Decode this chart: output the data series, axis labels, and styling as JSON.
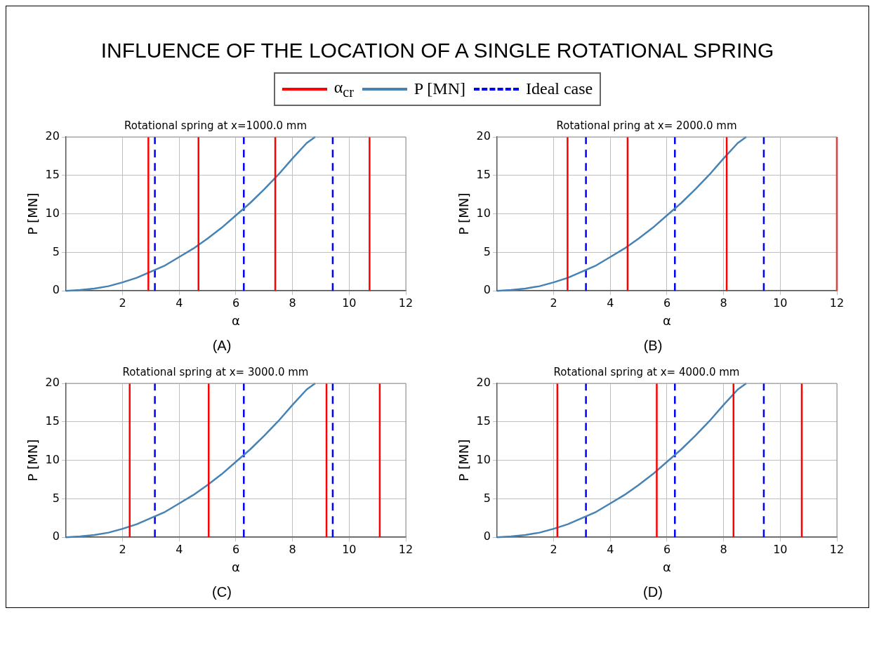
{
  "chart_data": [
    {
      "type": "other",
      "title": "INFLUENCE OF THE LOCATION OF A SINGLE ROTATIONAL SPRING"
    },
    {
      "type": "line",
      "title": "Rotational spring at x=1000.0 mm",
      "xlabel": "α",
      "ylabel": "P [MN]",
      "annotations": [
        "(A)"
      ],
      "xlim": [
        0,
        12
      ],
      "ylim": [
        0,
        20
      ],
      "xticks": [
        2,
        4,
        6,
        8,
        10,
        12
      ],
      "yticks": [
        0,
        5,
        10,
        15,
        20
      ],
      "grid": true,
      "legend": "top",
      "marker": "none",
      "series": [
        {
          "name": "α$_{cr}$",
          "color": "#ff0000",
          "x": [
            2.91,
            2.91,
            null,
            4.68,
            4.68,
            null,
            7.39,
            7.39,
            null,
            10.72,
            10.72
          ],
          "values": [
            0,
            20,
            null,
            0,
            20,
            null,
            0,
            20,
            null,
            0,
            20
          ]
        },
        {
          "name": "P [MN]",
          "color": "#4682b4",
          "x": [
            0,
            0.5,
            1,
            1.5,
            2,
            2.5,
            3,
            3.5,
            4,
            4.5,
            5,
            5.5,
            6,
            6.5,
            7,
            7.5,
            8,
            8.5,
            8.8
          ],
          "values": [
            0,
            0.1,
            0.3,
            0.6,
            1.1,
            1.7,
            2.5,
            3.3,
            4.4,
            5.5,
            6.8,
            8.2,
            9.8,
            11.4,
            13.2,
            15.1,
            17.2,
            19.2,
            20
          ]
        },
        {
          "name": "Ideal case",
          "color": "#0000ff",
          "line_style": "dashed",
          "x": [
            3.14,
            3.14,
            null,
            6.28,
            6.28,
            null,
            9.42,
            9.42
          ],
          "values": [
            0,
            20,
            null,
            0,
            20,
            null,
            0,
            20
          ]
        }
      ]
    },
    {
      "type": "line",
      "title": "Rotational pring at x= 2000.0 mm",
      "xlabel": "α",
      "ylabel": "P [MN]",
      "annotations": [
        "(B)"
      ],
      "xlim": [
        0,
        12
      ],
      "ylim": [
        0,
        20
      ],
      "xticks": [
        2,
        4,
        6,
        8,
        10,
        12
      ],
      "yticks": [
        0,
        5,
        10,
        15,
        20
      ],
      "grid": true,
      "marker": "none",
      "series": [
        {
          "color": "#ff0000",
          "x": [
            2.49,
            2.49,
            null,
            4.61,
            4.61,
            null,
            8.11,
            8.11,
            null,
            12,
            12
          ],
          "values": [
            0,
            20,
            null,
            0,
            20,
            null,
            0,
            20,
            null,
            0,
            20
          ]
        },
        {
          "color": "#4682b4",
          "x": [
            0,
            0.5,
            1,
            1.5,
            2,
            2.5,
            3,
            3.5,
            4,
            4.5,
            5,
            5.5,
            6,
            6.5,
            7,
            7.5,
            8,
            8.5,
            8.8
          ],
          "values": [
            0,
            0.1,
            0.3,
            0.6,
            1.1,
            1.7,
            2.5,
            3.3,
            4.4,
            5.5,
            6.8,
            8.2,
            9.8,
            11.4,
            13.2,
            15.1,
            17.2,
            19.2,
            20
          ]
        },
        {
          "color": "#0000ff",
          "line_style": "dashed",
          "x": [
            3.14,
            3.14,
            null,
            6.28,
            6.28,
            null,
            9.42,
            9.42
          ],
          "values": [
            0,
            20,
            null,
            0,
            20,
            null,
            0,
            20
          ]
        }
      ]
    },
    {
      "type": "line",
      "title": "Rotational spring at x= 3000.0 mm",
      "xlabel": "α",
      "ylabel": "P [MN]",
      "annotations": [
        "(C)"
      ],
      "xlim": [
        0,
        12
      ],
      "ylim": [
        0,
        20
      ],
      "xticks": [
        2,
        4,
        6,
        8,
        10,
        12
      ],
      "yticks": [
        0,
        5,
        10,
        15,
        20
      ],
      "grid": true,
      "marker": "none",
      "series": [
        {
          "color": "#ff0000",
          "x": [
            2.25,
            2.25,
            null,
            5.04,
            5.04,
            null,
            9.2,
            9.2,
            null,
            11.08,
            11.08
          ],
          "values": [
            0,
            20,
            null,
            0,
            20,
            null,
            0,
            20,
            null,
            0,
            20
          ]
        },
        {
          "color": "#4682b4",
          "x": [
            0,
            0.5,
            1,
            1.5,
            2,
            2.5,
            3,
            3.5,
            4,
            4.5,
            5,
            5.5,
            6,
            6.5,
            7,
            7.5,
            8,
            8.5,
            8.8
          ],
          "values": [
            0,
            0.1,
            0.3,
            0.6,
            1.1,
            1.7,
            2.5,
            3.3,
            4.4,
            5.5,
            6.8,
            8.2,
            9.8,
            11.4,
            13.2,
            15.1,
            17.2,
            19.2,
            20
          ]
        },
        {
          "color": "#0000ff",
          "line_style": "dashed",
          "x": [
            3.14,
            3.14,
            null,
            6.28,
            6.28,
            null,
            9.42,
            9.42
          ],
          "values": [
            0,
            20,
            null,
            0,
            20,
            null,
            0,
            20
          ]
        }
      ]
    },
    {
      "type": "line",
      "title": "Rotational spring at x= 4000.0 mm",
      "xlabel": "α",
      "ylabel": "P [MN]",
      "annotations": [
        "(D)"
      ],
      "xlim": [
        0,
        12
      ],
      "ylim": [
        0,
        20
      ],
      "xticks": [
        2,
        4,
        6,
        8,
        10,
        12
      ],
      "yticks": [
        0,
        5,
        10,
        15,
        20
      ],
      "grid": true,
      "marker": "none",
      "series": [
        {
          "color": "#ff0000",
          "x": [
            2.13,
            2.13,
            null,
            5.64,
            5.64,
            null,
            8.35,
            8.35,
            null,
            10.76,
            10.76
          ],
          "values": [
            0,
            20,
            null,
            0,
            20,
            null,
            0,
            20,
            null,
            0,
            20
          ]
        },
        {
          "color": "#4682b4",
          "x": [
            0,
            0.5,
            1,
            1.5,
            2,
            2.5,
            3,
            3.5,
            4,
            4.5,
            5,
            5.5,
            6,
            6.5,
            7,
            7.5,
            8,
            8.5,
            8.8
          ],
          "values": [
            0,
            0.1,
            0.3,
            0.6,
            1.1,
            1.7,
            2.5,
            3.3,
            4.4,
            5.5,
            6.8,
            8.2,
            9.8,
            11.4,
            13.2,
            15.1,
            17.2,
            19.2,
            20
          ]
        },
        {
          "color": "#0000ff",
          "line_style": "dashed",
          "x": [
            3.14,
            3.14,
            null,
            6.28,
            6.28,
            null,
            9.42,
            9.42
          ],
          "values": [
            0,
            20,
            null,
            0,
            20,
            null,
            0,
            20
          ]
        }
      ]
    }
  ]
}
